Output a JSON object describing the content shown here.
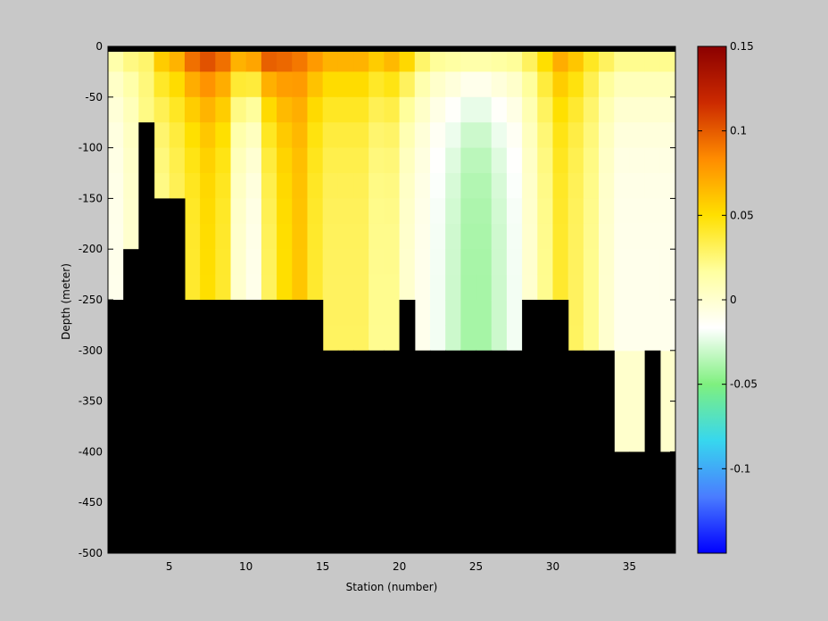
{
  "chart_data": {
    "type": "heatmap",
    "title": "",
    "xlabel": "Station (number)",
    "ylabel": "Depth (meter)",
    "xlim": [
      1,
      38
    ],
    "ylim": [
      -500,
      0
    ],
    "xticks": [
      5,
      10,
      15,
      20,
      25,
      30,
      35
    ],
    "yticks": [
      0,
      -50,
      -100,
      -150,
      -200,
      -250,
      -300,
      -350,
      -400,
      -450,
      -500
    ],
    "colorbar": {
      "range": [
        -0.15,
        0.15
      ],
      "ticks": [
        0.15,
        0.1,
        0.05,
        0,
        -0.05,
        -0.1
      ],
      "tick_labels": [
        "0.15",
        "0.1",
        "0.05",
        "0",
        "-0.05",
        "-0.1"
      ],
      "colormap": [
        "#0000ff",
        "#4a7cff",
        "#37d7ee",
        "#7ff07f",
        "#ffffff",
        "#ffffa0",
        "#ffe000",
        "#ff8c00",
        "#cc2a00",
        "#8b0000"
      ]
    },
    "mask_color": "#000000",
    "grid": false,
    "station_columns": [
      1.5,
      2.5,
      3.5,
      4.5,
      5.5,
      6.5,
      7.5,
      8.5,
      9.5,
      10.5,
      11.5,
      12.5,
      13.5,
      14.5,
      15.5,
      16.5,
      17.5,
      18.5,
      19.5,
      20.5,
      21.5,
      22.5,
      23.5,
      24.5,
      25.5,
      26.5,
      27.5,
      28.5,
      29.5,
      30.5,
      31.5,
      32.5,
      33.5,
      34.5,
      35.5,
      36.5,
      37.5
    ],
    "column_bottom_depth": [
      -250,
      -200,
      -75,
      -150,
      -150,
      -250,
      -250,
      -250,
      -250,
      -250,
      -250,
      -250,
      -250,
      -250,
      -300,
      -300,
      -300,
      -300,
      -300,
      -250,
      -300,
      -300,
      -300,
      -300,
      -300,
      -300,
      -300,
      -250,
      -250,
      -250,
      -300,
      -300,
      -300,
      -400,
      -400,
      -300,
      -400
    ],
    "surface_values": [
      0.02,
      0.03,
      0.03,
      0.07,
      0.08,
      0.11,
      0.12,
      0.11,
      0.09,
      0.1,
      0.12,
      0.11,
      0.1,
      0.09,
      0.08,
      0.08,
      0.08,
      0.07,
      0.08,
      0.07,
      0.04,
      0.03,
      0.03,
      0.03,
      0.03,
      0.03,
      0.03,
      0.04,
      0.06,
      0.08,
      0.07,
      0.05,
      0.04,
      0.03,
      0.03,
      0.03,
      0.03
    ],
    "deep_values": [
      -0.01,
      0.0,
      0.02,
      0.02,
      0.03,
      0.04,
      0.05,
      0.04,
      0.0,
      -0.01,
      0.03,
      0.05,
      0.06,
      0.04,
      0.03,
      0.03,
      0.03,
      0.02,
      0.02,
      0.0,
      -0.01,
      -0.02,
      -0.03,
      -0.04,
      -0.04,
      -0.03,
      -0.02,
      0.0,
      0.02,
      0.04,
      0.03,
      0.02,
      0.0,
      -0.01,
      -0.01,
      -0.01,
      -0.01
    ]
  }
}
